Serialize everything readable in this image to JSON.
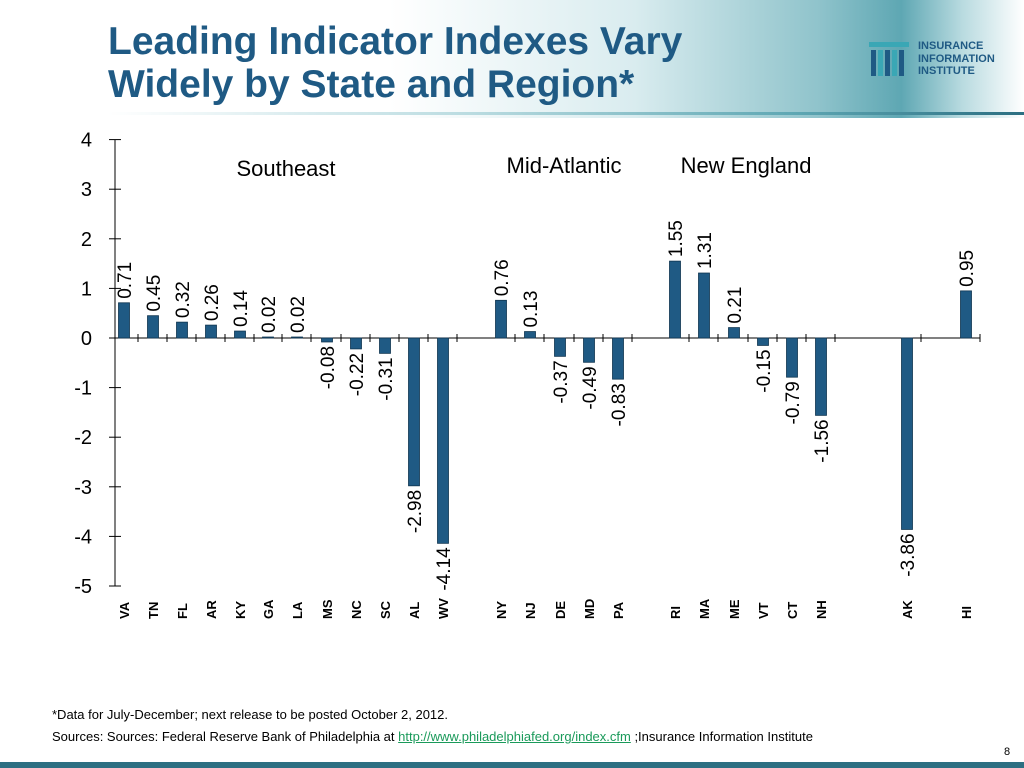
{
  "slide": {
    "title_line1": "Leading Indicator Indexes Vary",
    "title_line2": "Widely by State and Region*",
    "logo_line1": "INSURANCE",
    "logo_line2": "INFORMATION",
    "logo_line3": "INSTITUTE",
    "footnote": "*Data for July-December; next release to be posted October 2, 2012.",
    "sources_prefix": "Sources:  Sources: Federal Reserve Bank of Philadelphia at ",
    "sources_link": "http://www.philadelphiafed.org/index.cfm",
    "sources_suffix": " ;Insurance Information Institute",
    "page_number": "8"
  },
  "colors": {
    "title": "#1f5a84",
    "bar_fill": "#1f5a84",
    "bar_stroke": "#0f3550",
    "link": "#1a9a5a",
    "bottom_bar": "#2c6f82"
  },
  "chart_data": {
    "type": "bar",
    "title": "",
    "xlabel": "",
    "ylabel": "",
    "ylim": [
      -5,
      4
    ],
    "yticks": [
      4,
      3,
      2,
      1,
      0,
      -1,
      -2,
      -3,
      -4,
      -5
    ],
    "grid": false,
    "categories": [
      "VA",
      "TN",
      "FL",
      "AR",
      "KY",
      "GA",
      "LA",
      "MS",
      "NC",
      "SC",
      "AL",
      "WV",
      "NY",
      "NJ",
      "DE",
      "MD",
      "PA",
      "RI",
      "MA",
      "ME",
      "VT",
      "CT",
      "NH",
      "AK",
      "HI"
    ],
    "values": [
      0.71,
      0.45,
      0.32,
      0.26,
      0.14,
      0.02,
      0.02,
      -0.08,
      -0.22,
      -0.31,
      -2.98,
      -4.14,
      0.76,
      0.13,
      -0.37,
      -0.49,
      -0.83,
      1.55,
      1.31,
      0.21,
      -0.15,
      -0.79,
      -1.56,
      -3.86,
      0.95
    ],
    "data_labels": [
      "0.71",
      "0.45",
      "0.32",
      "0.26",
      "0.14",
      "0.02",
      "0.02",
      "-0.08",
      "-0.22",
      "-0.31",
      "-2.98",
      "-4.14",
      "0.76",
      "0.13",
      "-0.37",
      "-0.49",
      "-0.83",
      "1.55",
      "1.31",
      "0.21",
      "-0.15",
      "-0.79",
      "-1.56",
      "-3.86",
      "0.95"
    ],
    "annotations": [
      {
        "text": "Southeast",
        "near": "VA–SC"
      },
      {
        "text": "Mid-Atlantic",
        "near": "NY–PA"
      },
      {
        "text": "New England",
        "near": "RI–NH"
      }
    ]
  }
}
